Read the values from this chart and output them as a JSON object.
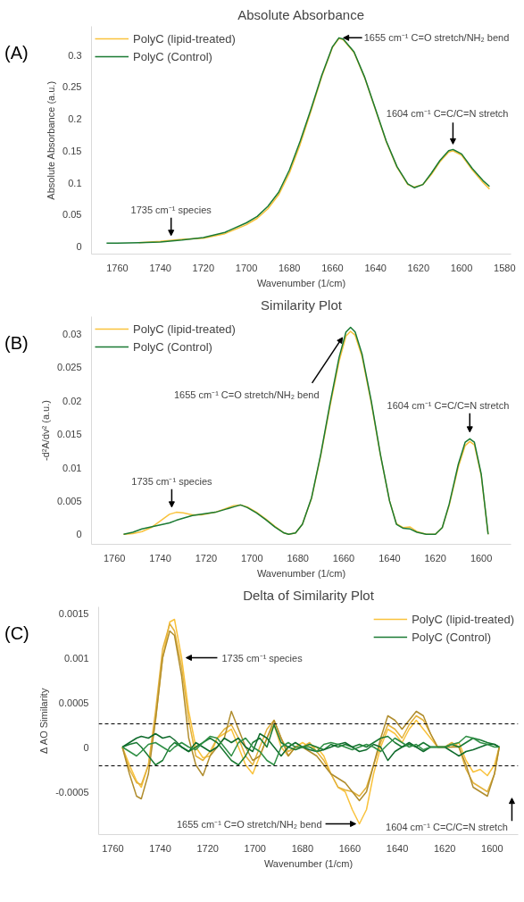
{
  "chart_data": [
    {
      "type": "line",
      "title": "Absolute Absorbance",
      "xlabel": "Wavenumber (1/cm)",
      "ylabel": "Absolute Absorbance (a.u.)",
      "xlim": [
        1772,
        1577
      ],
      "ylim": [
        -0.012,
        0.345
      ],
      "xticks": [
        1760,
        1740,
        1720,
        1700,
        1680,
        1660,
        1640,
        1620,
        1600,
        1580
      ],
      "yticks": [
        0,
        0.05,
        0.1,
        0.15,
        0.2,
        0.25,
        0.3
      ],
      "grid": false,
      "legend": "top left",
      "x": [
        1765,
        1760,
        1750,
        1740,
        1730,
        1720,
        1710,
        1700,
        1695,
        1690,
        1685,
        1680,
        1675,
        1670,
        1665,
        1660,
        1657,
        1655,
        1650,
        1645,
        1640,
        1635,
        1630,
        1625,
        1622,
        1618,
        1614,
        1610,
        1606,
        1604,
        1600,
        1595,
        1590,
        1587
      ],
      "series": [
        {
          "name": "PolyC (lipid-treated)",
          "color": "#f9c23c",
          "x": [
            1750,
            1740,
            1730,
            1720,
            1710,
            1700,
            1695,
            1690,
            1685,
            1680,
            1675,
            1670,
            1665,
            1660,
            1657,
            1655,
            1650,
            1645,
            1640,
            1635,
            1630,
            1625,
            1622,
            1618,
            1614,
            1610,
            1606,
            1604,
            1600,
            1595,
            1590,
            1587
          ],
          "values": [
            0.006,
            0.008,
            0.011,
            0.013,
            0.02,
            0.034,
            0.044,
            0.059,
            0.081,
            0.115,
            0.16,
            0.212,
            0.266,
            0.312,
            0.326,
            0.324,
            0.304,
            0.264,
            0.214,
            0.164,
            0.124,
            0.097,
            0.093,
            0.097,
            0.113,
            0.133,
            0.148,
            0.15,
            0.143,
            0.12,
            0.1,
            0.09
          ]
        },
        {
          "name": "PolyC (Control)",
          "color": "#1a7a33",
          "values": [
            0.005,
            0.005,
            0.006,
            0.007,
            0.01,
            0.014,
            0.022,
            0.037,
            0.047,
            0.063,
            0.085,
            0.12,
            0.165,
            0.215,
            0.268,
            0.313,
            0.327,
            0.325,
            0.305,
            0.265,
            0.215,
            0.165,
            0.125,
            0.098,
            0.092,
            0.097,
            0.115,
            0.135,
            0.15,
            0.152,
            0.145,
            0.122,
            0.103,
            0.094
          ]
        }
      ],
      "annotations": [
        "(A)",
        {
          "text": "1655 cm⁻¹ C=O stretch/NH₂ bend",
          "x": 1657,
          "y": 0.327
        },
        {
          "text": "1604 cm⁻¹ C=C/C=N stretch",
          "x": 1604,
          "y": 0.152
        },
        {
          "text": "1735 cm⁻¹ species",
          "x": 1735,
          "y": 0.01
        }
      ]
    },
    {
      "type": "line",
      "title": "Similarity Plot",
      "xlabel": "Wavenumber (1/cm)",
      "ylabel": "-d²A/dv² (a.u.)",
      "xlim": [
        1770,
        1587
      ],
      "ylim": [
        -0.0015,
        0.0326
      ],
      "xticks": [
        1760,
        1740,
        1720,
        1700,
        1680,
        1660,
        1640,
        1620,
        1600
      ],
      "yticks": [
        0,
        0.005,
        0.01,
        0.015,
        0.02,
        0.025,
        0.03
      ],
      "grid": false,
      "legend": "top left",
      "x": [
        1756,
        1752,
        1748,
        1744,
        1740,
        1736,
        1733,
        1730,
        1726,
        1722,
        1716,
        1712,
        1708,
        1705,
        1702,
        1698,
        1694,
        1690,
        1686,
        1684,
        1681,
        1678,
        1674,
        1670,
        1666,
        1662,
        1659,
        1657,
        1655,
        1652,
        1648,
        1644,
        1640,
        1637,
        1634,
        1631,
        1628,
        1624,
        1620,
        1617,
        1614,
        1610,
        1607,
        1605,
        1603,
        1600,
        1597
      ],
      "series": [
        {
          "name": "PolyC (lipid-treated)",
          "color": "#f9c23c",
          "values": [
            0,
            0.0001,
            0.0004,
            0.001,
            0.002,
            0.003,
            0.0033,
            0.0032,
            0.0029,
            0.0029,
            0.0033,
            0.0038,
            0.0043,
            0.0044,
            0.0041,
            0.0033,
            0.0023,
            0.0012,
            0.0002,
            0,
            0.0002,
            0.0015,
            0.0054,
            0.0118,
            0.0191,
            0.0259,
            0.0297,
            0.0304,
            0.0298,
            0.0266,
            0.0197,
            0.0119,
            0.005,
            0.0016,
            0.001,
            0.0011,
            0.0004,
            0,
            0,
            0.001,
            0.0043,
            0.0101,
            0.0133,
            0.0139,
            0.0134,
            0.0088,
            0
          ]
        },
        {
          "name": "PolyC (Control)",
          "color": "#1a7a33",
          "values": [
            0,
            0.0003,
            0.0008,
            0.0011,
            0.0014,
            0.0017,
            0.0021,
            0.0024,
            0.0028,
            0.003,
            0.0033,
            0.0037,
            0.0041,
            0.0044,
            0.004,
            0.0032,
            0.0022,
            0.0011,
            0.0002,
            0,
            0.0002,
            0.0015,
            0.0055,
            0.012,
            0.0195,
            0.0265,
            0.0303,
            0.031,
            0.0303,
            0.027,
            0.02,
            0.012,
            0.005,
            0.0015,
            0.0009,
            0.0008,
            0.0003,
            0,
            0,
            0.001,
            0.0045,
            0.0105,
            0.0138,
            0.0143,
            0.0138,
            0.009,
            0
          ]
        }
      ],
      "annotations": [
        "(B)",
        {
          "text": "1655 cm⁻¹ C=O stretch/NH₂ bend",
          "x": 1659,
          "y": 0.03
        },
        {
          "text": "1604 cm⁻¹ C=C/C=N stretch",
          "x": 1605,
          "y": 0.0145
        },
        {
          "text": "1735 cm⁻¹ species",
          "x": 1735,
          "y": 0.0034
        }
      ]
    },
    {
      "type": "line",
      "title": "Delta of Similarity Plot",
      "xlabel": "Wavenumber (1/cm)",
      "ylabel": "Δ AO Similarity",
      "xlim": [
        1766,
        1589
      ],
      "ylim": [
        -0.00098,
        0.00157
      ],
      "xticks": [
        1760,
        1740,
        1720,
        1700,
        1680,
        1660,
        1640,
        1620,
        1600
      ],
      "yticks": [
        -0.0005,
        0,
        0.0005,
        0.001,
        0.0015
      ],
      "grid": false,
      "legend": "top right",
      "x": [
        1756,
        1753,
        1750,
        1748,
        1745,
        1742,
        1739,
        1736,
        1734,
        1731,
        1728,
        1725,
        1722,
        1719,
        1716,
        1713,
        1710,
        1707,
        1704,
        1701,
        1698,
        1695,
        1692,
        1689,
        1686,
        1683,
        1680,
        1677,
        1674,
        1671,
        1668,
        1665,
        1662,
        1659,
        1656,
        1653,
        1650,
        1647,
        1644,
        1641,
        1638,
        1635,
        1632,
        1629,
        1626,
        1623,
        1620,
        1617,
        1614,
        1611,
        1608,
        1605,
        1602,
        1599,
        1597
      ],
      "series": [
        {
          "name": "PolyC (lipid-treated)",
          "color": "#f9c23c",
          "values": [
            0,
            -0.0002,
            -0.00038,
            -0.00045,
            -0.0002,
            0.0003,
            0.001,
            0.0014,
            0.00143,
            0.001,
            0.0004,
            0,
            -0.00012,
            -0.0001,
            0.0001,
            0.00015,
            0.0002,
            0,
            -0.0002,
            -0.0003,
            -0.0001,
            0.0001,
            0.00025,
            0,
            -0.0001,
            0,
            5e-05,
            0,
            0,
            -0.0001,
            -0.0003,
            -0.00045,
            -0.0005,
            -0.0007,
            -0.00086,
            -0.0007,
            -0.0003,
            0,
            0.0002,
            0.00015,
            5e-05,
            0.0002,
            0.0003,
            0.0002,
            0.0001,
            0,
            0,
            0,
            5e-05,
            -0.00015,
            -0.00028,
            -0.00025,
            -0.00032,
            -0.0002,
            0
          ]
        },
        {
          "color": "#e3b23c",
          "values": [
            0,
            -0.00025,
            -0.0004,
            -0.00042,
            -0.0002,
            0.0004,
            0.0011,
            0.00138,
            0.0013,
            0.0009,
            0.0003,
            -0.0001,
            -0.00015,
            -5e-05,
            0.0001,
            0.0002,
            0.00025,
            0.0001,
            -0.0001,
            -0.0002,
            0,
            0.0002,
            0.0003,
            0.0001,
            -5e-05,
            0,
            0,
            5e-05,
            -5e-05,
            -0.00015,
            -0.0003,
            -0.00045,
            -0.00048,
            -0.0005,
            -0.00055,
            -0.00045,
            -0.0002,
            5e-05,
            0.00025,
            0.0002,
            0.0001,
            0.00025,
            0.00035,
            0.0003,
            0.00015,
            0,
            0,
            5e-05,
            0,
            -0.00025,
            -0.0004,
            -0.00045,
            -0.0005,
            -0.0003,
            0
          ]
        },
        {
          "color": "#b08d2e",
          "values": [
            0,
            -0.0003,
            -0.00055,
            -0.00058,
            -0.0003,
            0.0003,
            0.001,
            0.0013,
            0.00125,
            0.0008,
            0.0001,
            -0.0002,
            -0.00032,
            -0.0001,
            0,
            0.0001,
            0.0004,
            0.0002,
            0,
            -0.00015,
            -0.0001,
            0.0001,
            0.0003,
            0.0001,
            -0.0001,
            0,
            0,
            -5e-05,
            -0.0001,
            -0.0002,
            -0.0003,
            -0.00035,
            -0.0004,
            -0.0005,
            -0.0006,
            -0.0005,
            -0.0002,
            0.0001,
            0.00035,
            0.0003,
            0.0002,
            0.0003,
            0.0004,
            0.00035,
            0.00015,
            0,
            0,
            0,
            0,
            -0.0002,
            -0.00045,
            -0.0005,
            -0.00055,
            -0.0003,
            0
          ]
        },
        {
          "name": "PolyC (Control)",
          "color": "#1a7a33",
          "values": [
            0,
            3e-05,
            5e-05,
            0,
            -0.0001,
            -0.0002,
            -0.00015,
            0,
            5e-05,
            0,
            -5e-05,
            0,
            5e-05,
            0.0001,
            5e-05,
            -5e-05,
            -0.00015,
            -0.0002,
            -0.0001,
            5e-05,
            0.0001,
            0,
            0.00025,
            5e-05,
            0,
            -3e-05,
            0,
            3e-05,
            0,
            -3e-05,
            3e-05,
            0,
            3e-05,
            0,
            3e-05,
            0,
            5e-05,
            0.0001,
            0.00012,
            5e-05,
            0,
            3e-05,
            0,
            5e-05,
            0,
            0,
            0,
            3e-05,
            0,
            5e-05,
            0.0001,
            8e-05,
            5e-05,
            3e-05,
            0
          ]
        },
        {
          "color": "#0f6b2c",
          "values": [
            0,
            5e-05,
            0.0001,
            0.00012,
            0.0001,
            0.00015,
            0.0001,
            0.00012,
            8e-05,
            0,
            -5e-05,
            5e-05,
            0,
            -5e-05,
            0,
            0.0001,
            5e-05,
            0.0001,
            0,
            -5e-05,
            0.00015,
            0.0001,
            0,
            -0.0001,
            0,
            5e-05,
            0,
            -3e-05,
            -5e-05,
            -3e-05,
            0,
            3e-05,
            5e-05,
            0,
            -5e-05,
            -3e-05,
            3e-05,
            0,
            -0.00015,
            -5e-05,
            0,
            5e-05,
            0,
            -5e-05,
            0,
            0,
            0,
            -5e-05,
            -0.0001,
            -5e-05,
            -3e-05,
            0,
            3e-05,
            3e-05,
            0
          ]
        },
        {
          "color": "#2f8f45",
          "values": [
            0,
            -5e-05,
            -0.0001,
            -5e-05,
            3e-05,
            5e-05,
            0,
            -5e-05,
            0,
            5e-05,
            0,
            -3e-05,
            5e-05,
            0.00012,
            0.0001,
            0,
            -0.0001,
            5e-05,
            0.0001,
            0,
            -5e-05,
            -0.00015,
            -0.0002,
            0,
            5e-05,
            0,
            0,
            0,
            -5e-05,
            3e-05,
            5e-05,
            3e-05,
            0,
            -3e-05,
            0,
            3e-05,
            0,
            -5e-05,
            3e-05,
            0.0001,
            5e-05,
            0,
            3e-05,
            -3e-05,
            0,
            0,
            0,
            3e-05,
            5e-05,
            0.00012,
            0.0001,
            5e-05,
            3e-05,
            0,
            0
          ]
        }
      ],
      "ref_lines": [
        {
          "axis": "y",
          "value": 0.00026,
          "color": "#000000",
          "line_style": "dashed"
        },
        {
          "axis": "y",
          "value": -0.00021,
          "color": "#000000",
          "line_style": "dashed"
        }
      ],
      "annotations": [
        "(C)",
        {
          "text": "1735 cm⁻¹ species",
          "x": 1731,
          "y": 0.001
        },
        {
          "text": "1655 cm⁻¹ C=O stretch/NH₂ bend",
          "x": 1656,
          "y": -0.00086
        },
        "1604 cm⁻¹ C=C/C=N stretch"
      ]
    }
  ]
}
